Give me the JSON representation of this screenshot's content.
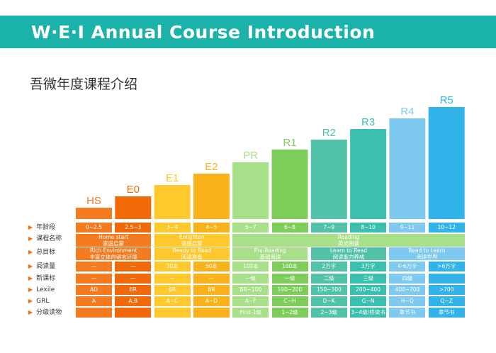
{
  "banner": {
    "title": "W·E·I Annual Course Introduction"
  },
  "subtitle": "吾微年度课程介绍",
  "colors": {
    "banner": "#1bb2aa",
    "HS": "#f47b20",
    "E0": "#f06a0a",
    "E1": "#ffc82c",
    "E2": "#f9b21a",
    "PR": "#a8e08a",
    "R1": "#7dcd5a",
    "R2": "#52c3a9",
    "R3": "#3bbfae",
    "R4": "#7ec9f0",
    "R5": "#32b4ea",
    "arrow": "#ff6a00"
  },
  "chart_data": {
    "type": "bar",
    "categories": [
      "HS",
      "E0",
      "E1",
      "E2",
      "PR",
      "R1",
      "R2",
      "R3",
      "R4",
      "R5"
    ],
    "values": [
      1,
      2,
      3,
      4,
      5,
      6,
      7,
      8,
      9,
      10
    ],
    "title": "",
    "xlabel": "",
    "ylabel": ""
  },
  "rows": [
    {
      "label": "年龄段",
      "cells": [
        {
          "text": "0~2.5",
          "span": 1
        },
        {
          "text": "2.5~3",
          "span": 1
        },
        {
          "text": "3~4",
          "span": 1
        },
        {
          "text": "4~5",
          "span": 1
        },
        {
          "text": "5~7",
          "span": 1
        },
        {
          "text": "6~8",
          "span": 1
        },
        {
          "text": "7~9",
          "span": 1
        },
        {
          "text": "8~10",
          "span": 1
        },
        {
          "text": "9~11",
          "span": 1
        },
        {
          "text": "10~12",
          "span": 1
        }
      ]
    },
    {
      "label": "课程名称",
      "cells": [
        {
          "text": "Home start",
          "sub": "家庭启蒙",
          "span": 2
        },
        {
          "text": "Enlighten",
          "sub": "语感启蒙",
          "span": 2
        },
        {
          "text": "Reading",
          "sub": "英文阅读",
          "span": 6
        }
      ]
    },
    {
      "label": "总目标",
      "cells": [
        {
          "text": "Rich Environment",
          "sub": "丰富立体的语言环境",
          "span": 2
        },
        {
          "text": "Ready to Read",
          "sub": "阅读准备",
          "span": 2
        },
        {
          "text": "Pre-Reading",
          "sub": "基础阅读",
          "span": 2
        },
        {
          "text": "Learn to Read",
          "sub": "阅读能力养成",
          "span": 2
        },
        {
          "text": "Read to Learn",
          "sub": "阅读世界",
          "span": 2
        }
      ]
    },
    {
      "label": "阅读量",
      "cells": [
        {
          "text": "—",
          "span": 1
        },
        {
          "text": "—",
          "span": 1
        },
        {
          "text": "30本",
          "span": 1
        },
        {
          "text": "50本",
          "span": 1
        },
        {
          "text": "100本",
          "span": 1
        },
        {
          "text": "100本",
          "span": 1
        },
        {
          "text": "2万字",
          "span": 1
        },
        {
          "text": "3万字",
          "span": 1
        },
        {
          "text": "4-6万字",
          "span": 1
        },
        {
          "text": ">6万字",
          "span": 1
        }
      ]
    },
    {
      "label": "新课标",
      "cells": [
        {
          "text": "—",
          "span": 1
        },
        {
          "text": "—",
          "span": 1
        },
        {
          "text": "—",
          "span": 1
        },
        {
          "text": "—",
          "span": 1
        },
        {
          "text": "一级",
          "span": 1
        },
        {
          "text": "一级",
          "span": 1
        },
        {
          "text": "二级",
          "span": 1
        },
        {
          "text": "三级",
          "span": 1
        },
        {
          "text": "四级",
          "span": 1
        },
        {
          "text": "",
          "span": 1
        }
      ]
    },
    {
      "label": "Lexile",
      "cells": [
        {
          "text": "AD",
          "span": 1
        },
        {
          "text": "BR",
          "span": 1
        },
        {
          "text": "BR",
          "span": 1
        },
        {
          "text": "BR",
          "span": 1
        },
        {
          "text": "BR~100",
          "span": 1
        },
        {
          "text": "100~200",
          "span": 1
        },
        {
          "text": "150~300",
          "span": 1
        },
        {
          "text": "200~400",
          "span": 1
        },
        {
          "text": "400~700",
          "span": 1
        },
        {
          "text": ">700",
          "span": 1
        }
      ]
    },
    {
      "label": "GRL",
      "cells": [
        {
          "text": "A",
          "span": 1
        },
        {
          "text": "A,B",
          "span": 1
        },
        {
          "text": "A~C",
          "span": 1
        },
        {
          "text": "A~D",
          "span": 1
        },
        {
          "text": "A~F",
          "span": 1
        },
        {
          "text": "C~H",
          "span": 1
        },
        {
          "text": "D~K",
          "span": 1
        },
        {
          "text": "G~N",
          "span": 1
        },
        {
          "text": "H~Q",
          "span": 1
        },
        {
          "text": "Q~Z",
          "span": 1
        }
      ]
    },
    {
      "label": "分级读物",
      "cells": [
        {
          "text": "",
          "span": 1
        },
        {
          "text": "",
          "span": 1
        },
        {
          "text": "",
          "span": 1
        },
        {
          "text": "",
          "span": 1
        },
        {
          "text": "First-1级",
          "span": 1
        },
        {
          "text": "1~2级",
          "span": 1
        },
        {
          "text": "2~3级",
          "span": 1
        },
        {
          "text": "3~4级/桥梁书",
          "span": 1
        },
        {
          "text": "章节书",
          "span": 1
        },
        {
          "text": "章节书",
          "span": 1
        }
      ]
    }
  ]
}
